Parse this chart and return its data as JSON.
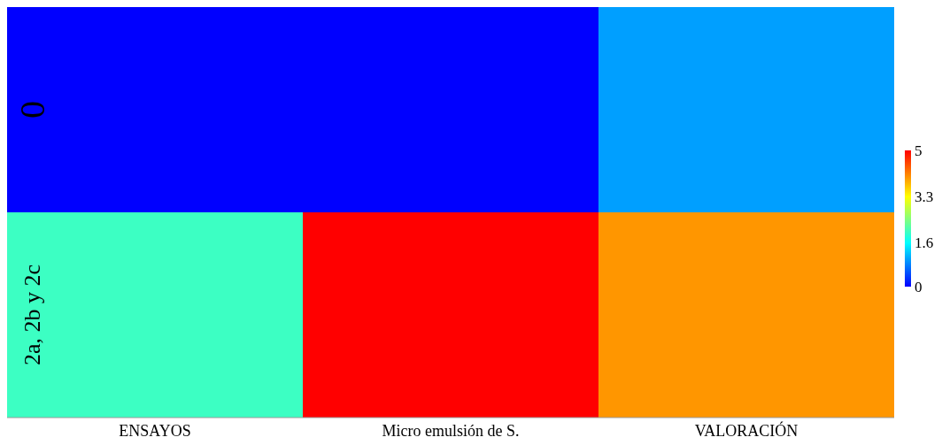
{
  "chart_data": {
    "type": "heatmap",
    "categories": [
      "ENSAYOS",
      "Micro emulsión de S.",
      "VALORACIÓN"
    ],
    "y_categories": [
      "0",
      "2a, 2b y 2c"
    ],
    "cells": [
      [
        0,
        0,
        1
      ],
      [
        2,
        5,
        4
      ]
    ],
    "clim": [
      0,
      5
    ],
    "cticks": [
      0,
      1.6,
      3.3,
      5
    ]
  }
}
